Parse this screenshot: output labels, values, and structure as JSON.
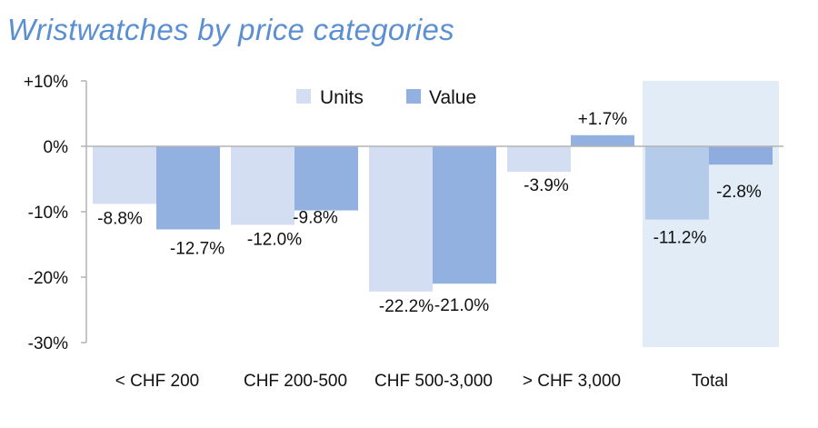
{
  "chart_data": {
    "type": "bar",
    "title": "Wristwatches by price categories",
    "categories": [
      "< CHF 200",
      "CHF 200-500",
      "CHF 500-3,000",
      "> CHF 3,000",
      "Total"
    ],
    "series": [
      {
        "name": "Units",
        "values": [
          -8.8,
          -12.0,
          -22.2,
          -3.9,
          -11.2
        ],
        "labels": [
          "-8.8%",
          "-12.0%",
          "-22.2%",
          "-3.9%",
          "-11.2%"
        ],
        "color": "#d3def3",
        "highlight_color": "#b5cbea"
      },
      {
        "name": "Value",
        "values": [
          -12.7,
          -9.8,
          -21.0,
          1.7,
          -2.8
        ],
        "labels": [
          "-12.7%",
          "-9.8%",
          "-21.0%",
          "+1.7%",
          "-2.8%"
        ],
        "color": "#92b1e0",
        "highlight_color": "#8eadde"
      }
    ],
    "ylim": [
      -30,
      10
    ],
    "yticks": [
      10,
      0,
      -10,
      -20,
      -30
    ],
    "ytick_labels": [
      "+10%",
      "0%",
      "-10%",
      "-20%",
      "-30%"
    ],
    "xlabel": "",
    "ylabel": "",
    "grid": false,
    "legend_position": "top",
    "highlight_category": "Total",
    "highlight_color": "#e2ecf6",
    "axis_color": "#b3b3b3"
  }
}
